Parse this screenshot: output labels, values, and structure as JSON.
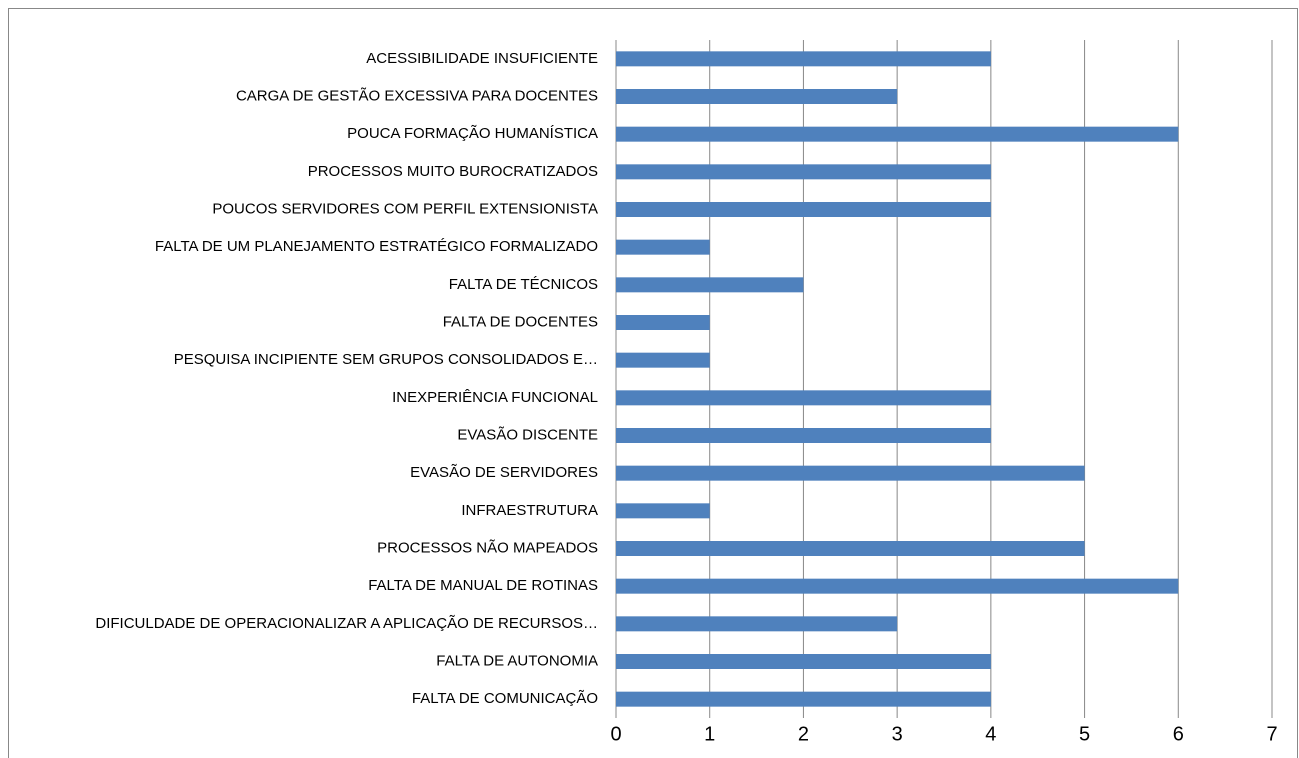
{
  "chart_data": {
    "type": "bar",
    "orientation": "horizontal",
    "categories": [
      "ACESSIBILIDADE INSUFICIENTE",
      "CARGA DE GESTÃO EXCESSIVA PARA DOCENTES",
      "POUCA FORMAÇÃO HUMANÍSTICA",
      "PROCESSOS MUITO BUROCRATIZADOS",
      "POUCOS SERVIDORES COM PERFIL EXTENSIONISTA",
      "FALTA DE UM PLANEJAMENTO ESTRATÉGICO FORMALIZADO",
      "FALTA DE TÉCNICOS",
      "FALTA DE DOCENTES",
      "PESQUISA INCIPIENTE SEM GRUPOS CONSOLIDADOS E…",
      "INEXPERIÊNCIA FUNCIONAL",
      "EVASÃO DISCENTE",
      "EVASÃO DE SERVIDORES",
      "INFRAESTRUTURA",
      "PROCESSOS NÃO MAPEADOS",
      "FALTA DE MANUAL DE ROTINAS",
      "DIFICULDADE DE OPERACIONALIZAR A APLICAÇÃO DE RECURSOS…",
      "FALTA DE AUTONOMIA",
      "FALTA DE COMUNICAÇÃO"
    ],
    "values": [
      4,
      3,
      6,
      4,
      4,
      1,
      2,
      1,
      1,
      4,
      4,
      5,
      1,
      5,
      6,
      3,
      4,
      4
    ],
    "color": "#4f81bd",
    "xlim": [
      0,
      7
    ],
    "xticks": [
      0,
      1,
      2,
      3,
      4,
      5,
      6,
      7
    ],
    "grid": true
  }
}
